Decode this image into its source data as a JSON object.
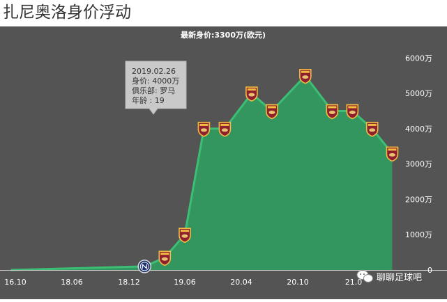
{
  "page": {
    "title": "扎尼奥洛身价浮动"
  },
  "colors": {
    "background": "#545454",
    "area": "#33965f",
    "line": "#3cbf74",
    "tooltip_bg": "#c9c9c9",
    "tick_text": "#ffffff"
  },
  "tooltip": {
    "date": "2019.02.26",
    "value_line": "身价: 4000万",
    "club_line": "俱乐部: 罗马",
    "age_line": "年龄 : 19"
  },
  "watermark": {
    "text": "聊聊足球吧",
    "icon": "wechat-icon"
  },
  "chart_data": {
    "type": "area",
    "title": "最新身价:3300万(欧元)",
    "xlabel": "",
    "ylabel": "",
    "x_ticks": [
      "16.10",
      "18.06",
      "18.12",
      "19.06",
      "20.04",
      "20.10",
      "21.0"
    ],
    "y_ticks": [
      "0",
      "1000万",
      "2000万",
      "3000万",
      "4000万",
      "5000万",
      "6000万"
    ],
    "ylim": [
      0,
      6500
    ],
    "xlim": [
      "2016-09-01",
      "2021-09-01"
    ],
    "grid": false,
    "legend": "none",
    "series": [
      {
        "points": [
          {
            "date": "2016-10-01",
            "value": 0,
            "club": ""
          },
          {
            "date": "2018-06-01",
            "value": 100,
            "club": "inter"
          },
          {
            "date": "2018-09-01",
            "value": 350,
            "club": "roma"
          },
          {
            "date": "2018-12-01",
            "value": 1000,
            "club": "roma"
          },
          {
            "date": "2019-02-26",
            "value": 4000,
            "club": "roma"
          },
          {
            "date": "2019-06-01",
            "value": 4000,
            "club": "roma"
          },
          {
            "date": "2019-10-01",
            "value": 5000,
            "club": "roma"
          },
          {
            "date": "2020-01-01",
            "value": 4500,
            "club": "roma"
          },
          {
            "date": "2020-06-01",
            "value": 5500,
            "club": "roma"
          },
          {
            "date": "2020-10-01",
            "value": 4500,
            "club": "roma"
          },
          {
            "date": "2021-01-01",
            "value": 4500,
            "club": "roma"
          },
          {
            "date": "2021-04-01",
            "value": 4000,
            "club": "roma"
          },
          {
            "date": "2021-07-01",
            "value": 3300,
            "club": "roma"
          }
        ]
      }
    ]
  }
}
